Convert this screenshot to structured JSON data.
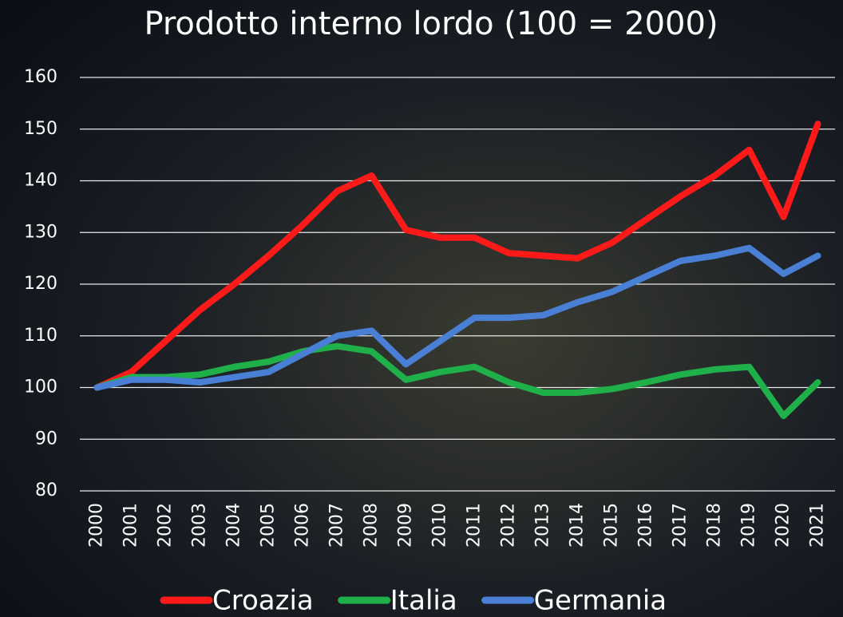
{
  "chart_data": {
    "type": "line",
    "title": "Prodotto interno lordo (100 = 2000)",
    "categories": [
      "2000",
      "2001",
      "2002",
      "2003",
      "2004",
      "2005",
      "2006",
      "2007",
      "2008",
      "2009",
      "2010",
      "2011",
      "2012",
      "2013",
      "2014",
      "2015",
      "2016",
      "2017",
      "2018",
      "2019",
      "2020",
      "2021"
    ],
    "series": [
      {
        "name": "Croazia",
        "color": "#ff1a1a",
        "values": [
          100,
          103,
          109,
          115,
          120,
          125.5,
          131.5,
          138,
          141,
          130.5,
          129,
          129,
          126,
          125.5,
          125,
          128,
          132.5,
          137,
          141,
          146,
          133,
          151
        ]
      },
      {
        "name": "Italia",
        "color": "#1fb04a",
        "values": [
          100,
          102,
          102,
          102.5,
          104,
          105,
          107,
          108,
          107,
          101.5,
          103,
          104,
          101,
          99,
          99,
          99.7,
          101,
          102.5,
          103.5,
          104,
          94.5,
          101
        ]
      },
      {
        "name": "Germania",
        "color": "#4a7fd6",
        "values": [
          100,
          101.5,
          101.5,
          101,
          102,
          103,
          106.5,
          110,
          111,
          104.5,
          109,
          113.5,
          113.5,
          114,
          116.5,
          118.5,
          121.5,
          124.5,
          125.5,
          127,
          122,
          125.5
        ]
      }
    ],
    "ylim": [
      80,
      160
    ],
    "yticks": [
      80,
      90,
      100,
      110,
      120,
      130,
      140,
      150,
      160
    ],
    "grid": true,
    "legend": "bottom"
  }
}
